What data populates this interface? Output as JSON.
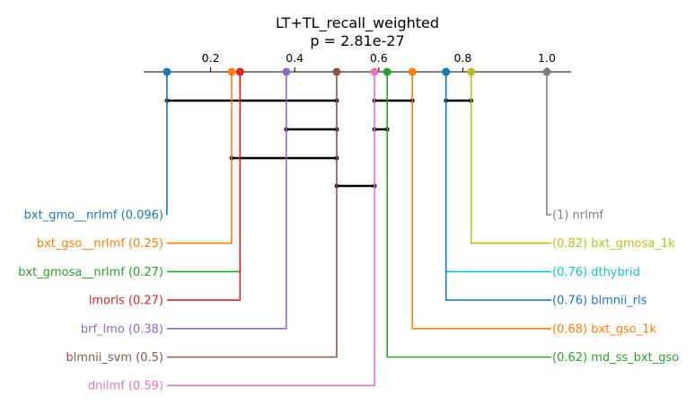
{
  "chart_data": {
    "type": "critical-difference",
    "title": "LT+TL_recall_weighted",
    "subtitle": "p = 2.81e-27",
    "axis": {
      "range": [
        0.0,
        1.05
      ],
      "ticks": [
        0.2,
        0.4,
        0.6,
        0.8,
        1.0
      ],
      "tick_labels": [
        "0.2",
        "0.4",
        "0.6",
        "0.8",
        "1.0"
      ]
    },
    "methods": [
      {
        "name": "bxt_gmo__nrlmf",
        "value": 0.096,
        "value_label": "0.096",
        "side": "left",
        "color": "#1f77b4"
      },
      {
        "name": "bxt_gso__nrlmf",
        "value": 0.25,
        "value_label": "0.25",
        "side": "left",
        "color": "#ff7f0e"
      },
      {
        "name": "bxt_gmosa__nrlmf",
        "value": 0.27,
        "value_label": "0.27",
        "side": "left",
        "color": "#2ca02c"
      },
      {
        "name": "lmorls",
        "value": 0.27,
        "value_label": "0.27",
        "side": "left",
        "color": "#d62728"
      },
      {
        "name": "brf_lmo",
        "value": 0.38,
        "value_label": "0.38",
        "side": "left",
        "color": "#9467bd"
      },
      {
        "name": "blmnii_svm",
        "value": 0.5,
        "value_label": "0.5",
        "side": "left",
        "color": "#8c564b"
      },
      {
        "name": "dnilmf",
        "value": 0.59,
        "value_label": "0.59",
        "side": "left",
        "color": "#e377c2"
      },
      {
        "name": "nrlmf",
        "value": 1.0,
        "value_label": "1",
        "side": "right",
        "color": "#7f7f7f"
      },
      {
        "name": "bxt_gmosa_1k",
        "value": 0.82,
        "value_label": "0.82",
        "side": "right",
        "color": "#bcbd22"
      },
      {
        "name": "dthybrid",
        "value": 0.76,
        "value_label": "0.76",
        "side": "right",
        "color": "#17becf"
      },
      {
        "name": "blmnii_rls",
        "value": 0.76,
        "value_label": "0.76",
        "side": "right",
        "color": "#1f77b4"
      },
      {
        "name": "bxt_gso_1k",
        "value": 0.68,
        "value_label": "0.68",
        "side": "right",
        "color": "#ff7f0e"
      },
      {
        "name": "md_ss_bxt_gso",
        "value": 0.62,
        "value_label": "0.62",
        "side": "right",
        "color": "#2ca02c"
      }
    ],
    "cliques": [
      {
        "from": 0.096,
        "to": 0.5
      },
      {
        "from": 0.59,
        "to": 0.68
      },
      {
        "from": 0.76,
        "to": 0.82
      },
      {
        "from": 0.38,
        "to": 0.5
      },
      {
        "from": 0.59,
        "to": 0.62
      },
      {
        "from": 0.25,
        "to": 0.5
      },
      {
        "from": 0.5,
        "to": 0.59
      }
    ],
    "clique_color": "#000000"
  }
}
